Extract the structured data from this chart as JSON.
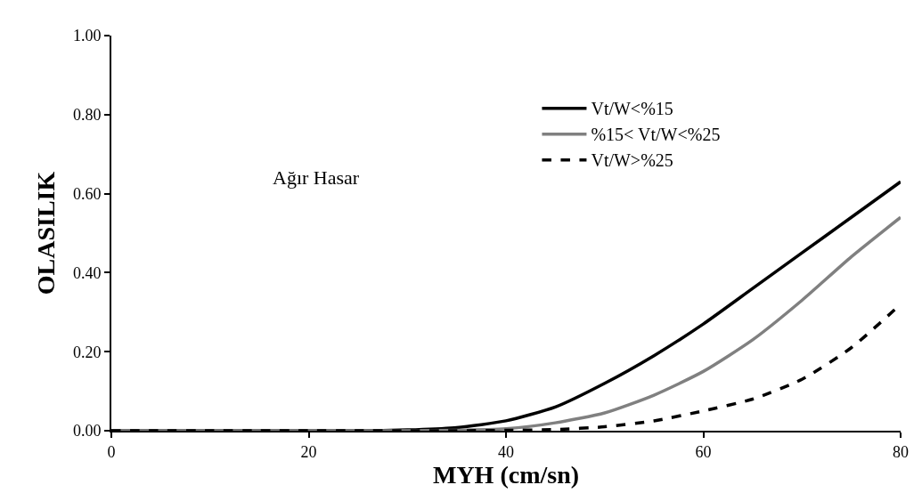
{
  "chart_data": {
    "type": "line",
    "xlabel": "MYH (cm/sn)",
    "ylabel": "OLASILIK",
    "annotations": [
      "Ağır Hasar"
    ],
    "xlim": [
      0,
      80
    ],
    "xticks": [
      0,
      20,
      40,
      60,
      80
    ],
    "ylim": [
      0,
      1
    ],
    "yticks": [
      {
        "value": 0,
        "label": "0.00"
      },
      {
        "value": 0.2,
        "label": "0.20"
      },
      {
        "value": 0.4,
        "label": "0.40"
      },
      {
        "value": 0.6,
        "label": "0.60"
      },
      {
        "value": 0.8,
        "label": "0.80"
      },
      {
        "value": 1,
        "label": "1.00"
      }
    ],
    "legend": "right",
    "marker": "none",
    "x": [
      0,
      5,
      10,
      15,
      20,
      25,
      30,
      35,
      40,
      45,
      50,
      55,
      60,
      65,
      70,
      75,
      80
    ],
    "series": [
      {
        "name": "Vt/W<%15",
        "color": "#000000",
        "line_style": "solid",
        "values": [
          0,
          0,
          0,
          0,
          0,
          0,
          0.002,
          0.008,
          0.025,
          0.06,
          0.12,
          0.19,
          0.27,
          0.36,
          0.45,
          0.54,
          0.63
        ]
      },
      {
        "name": "%15< Vt/W<%25",
        "color": "#808080",
        "line_style": "solid",
        "values": [
          0,
          0,
          0,
          0,
          0,
          0,
          0,
          0.001,
          0.005,
          0.02,
          0.045,
          0.09,
          0.15,
          0.23,
          0.33,
          0.44,
          0.54
        ]
      },
      {
        "name": "Vt/W>%25",
        "color": "#000000",
        "line_style": "dashed",
        "values": [
          0,
          0,
          0,
          0,
          0,
          0,
          0,
          0,
          0.001,
          0.003,
          0.01,
          0.025,
          0.05,
          0.08,
          0.13,
          0.21,
          0.32
        ]
      }
    ]
  }
}
